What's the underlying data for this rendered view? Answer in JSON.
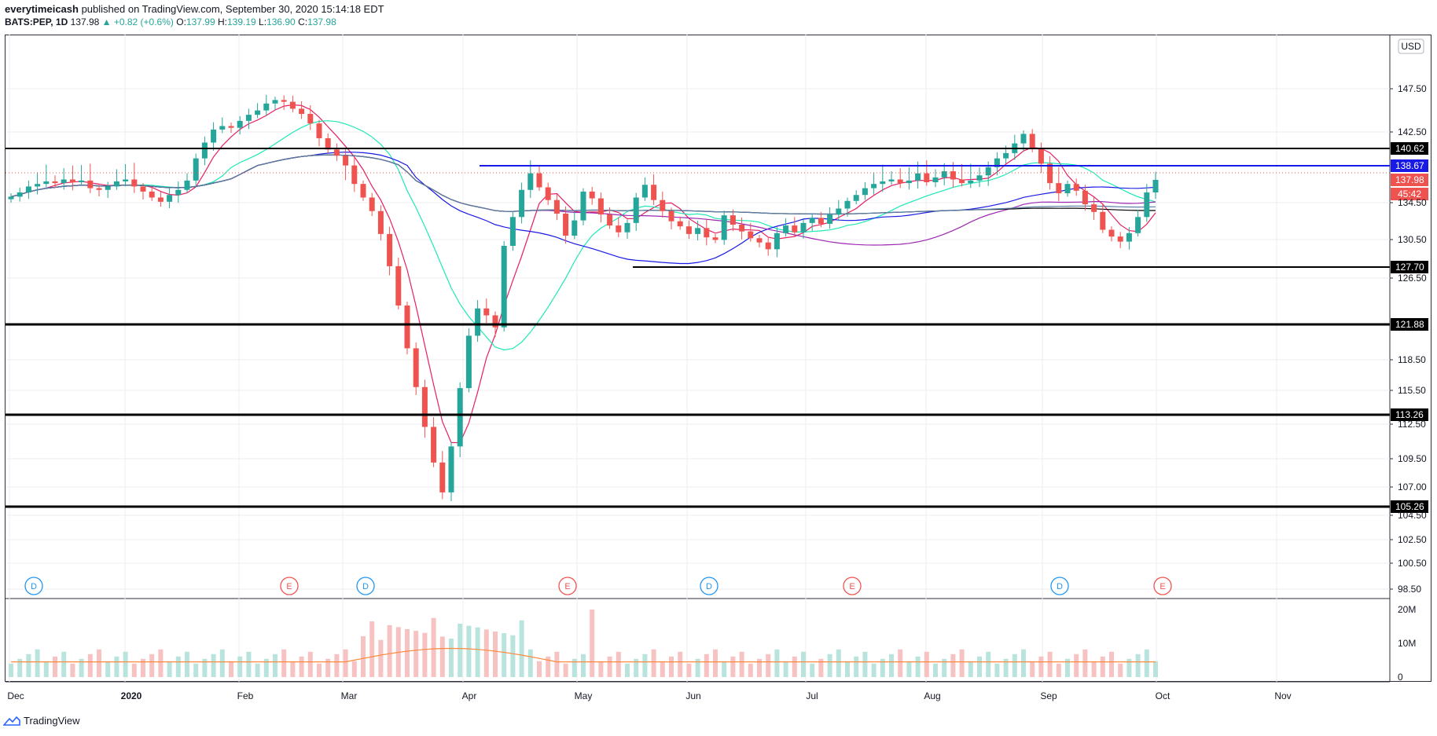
{
  "header": {
    "author": "everytimeicash",
    "published_text": "published on TradingView.com, September 30, 2020 15:14:18 EDT",
    "symbol": "BATS:PEP, 1D",
    "last": "137.98",
    "change": "▲ +0.82 (+0.6%)",
    "o_label": "O:",
    "o_val": "137.99",
    "h_label": "H:",
    "h_val": "139.19",
    "l_label": "L:",
    "l_val": "136.90",
    "c_label": "C:",
    "c_val": "137.98"
  },
  "currency": "USD",
  "footer": {
    "brand": "TradingView"
  },
  "chart_data": {
    "type": "candlestick",
    "price_ticks": [
      "147.50",
      "142.50",
      "134.50",
      "130.50",
      "126.50",
      "118.50",
      "115.50",
      "112.50",
      "109.50",
      "107.00",
      "104.50",
      "102.50",
      "100.50",
      "98.50"
    ],
    "volume_ticks": [
      "20M",
      "10M",
      "0"
    ],
    "x_labels": [
      "Dec",
      "2020",
      "Feb",
      "Mar",
      "Apr",
      "May",
      "Jun",
      "Jul",
      "Aug",
      "Sep",
      "Oct",
      "Nov"
    ],
    "levels": [
      {
        "value": 140.62,
        "label": "140.62",
        "color": "#000000",
        "start": "Dec"
      },
      {
        "value": 138.67,
        "label": "138.67",
        "color": "#1a1ae6",
        "start": "Apr"
      },
      {
        "value": 127.7,
        "label": "127.70",
        "color": "#000000",
        "start": "May"
      },
      {
        "value": 121.88,
        "label": "121.88",
        "color": "#000000",
        "start": "Dec"
      },
      {
        "value": 113.26,
        "label": "113.26",
        "color": "#000000",
        "start": "Dec"
      },
      {
        "value": 105.26,
        "label": "105.26",
        "color": "#000000",
        "start": "Dec"
      }
    ],
    "last_price": {
      "value": 137.98,
      "label": "137.98",
      "color": "#ef5350"
    },
    "countdown": {
      "label": "45:42",
      "color": "#ef5350"
    },
    "events": [
      {
        "type": "D",
        "x": "Dec"
      },
      {
        "type": "E",
        "x": "Feb"
      },
      {
        "type": "D",
        "x": "Mar"
      },
      {
        "type": "E",
        "x": "Apr"
      },
      {
        "type": "D",
        "x": "Jun"
      },
      {
        "type": "E",
        "x": "Jul"
      },
      {
        "type": "D",
        "x": "Sep"
      },
      {
        "type": "E",
        "x": "Oct"
      }
    ],
    "close_series": [
      136,
      136.5,
      137.2,
      137.5,
      137.8,
      137.6,
      138.0,
      137.7,
      137.9,
      137.0,
      136.8,
      137.2,
      137.8,
      138.0,
      137.2,
      136.6,
      135.9,
      135.4,
      136.2,
      136.8,
      137.9,
      139.5,
      141.3,
      142.8,
      143.2,
      143.0,
      143.8,
      144.5,
      145.0,
      145.8,
      146.2,
      146.0,
      145.2,
      144.6,
      143.5,
      141.8,
      140.5,
      139.8,
      138.7,
      137.5,
      135.9,
      134.3,
      131.6,
      127.8,
      123.8,
      119.6,
      115.9,
      112.2,
      109.1,
      106.5,
      110.5,
      115.8,
      120.8,
      123.5,
      122.8,
      121.6,
      130.2,
      133.6,
      136.8,
      138.3,
      137.1,
      135.6,
      134.0,
      131.4,
      133.2,
      136.6,
      135.8,
      133.9,
      132.6,
      131.8,
      132.9,
      135.9,
      137.4,
      135.6,
      134.3,
      133.1,
      132.5,
      131.6,
      132.3,
      131.2,
      130.9,
      133.8,
      132.7,
      131.9,
      131.1,
      130.6,
      129.8,
      131.7,
      132.6,
      131.8,
      132.9,
      133.5,
      132.8,
      133.9,
      134.6,
      135.5,
      136.2,
      137.0,
      137.5,
      137.8,
      138.0,
      137.6,
      137.9,
      138.3,
      137.7,
      138.1,
      138.4,
      138.0,
      137.6,
      137.9,
      138.2,
      138.6,
      139.5,
      140.1,
      141.2,
      142.3,
      140.6,
      138.9,
      137.6,
      136.4,
      137.5,
      136.7,
      135.1,
      134.2,
      132.1,
      131.3,
      130.7,
      131.7,
      133.6,
      136.5,
      137.98
    ],
    "volume_note_ticks": "20M,10M,0"
  }
}
